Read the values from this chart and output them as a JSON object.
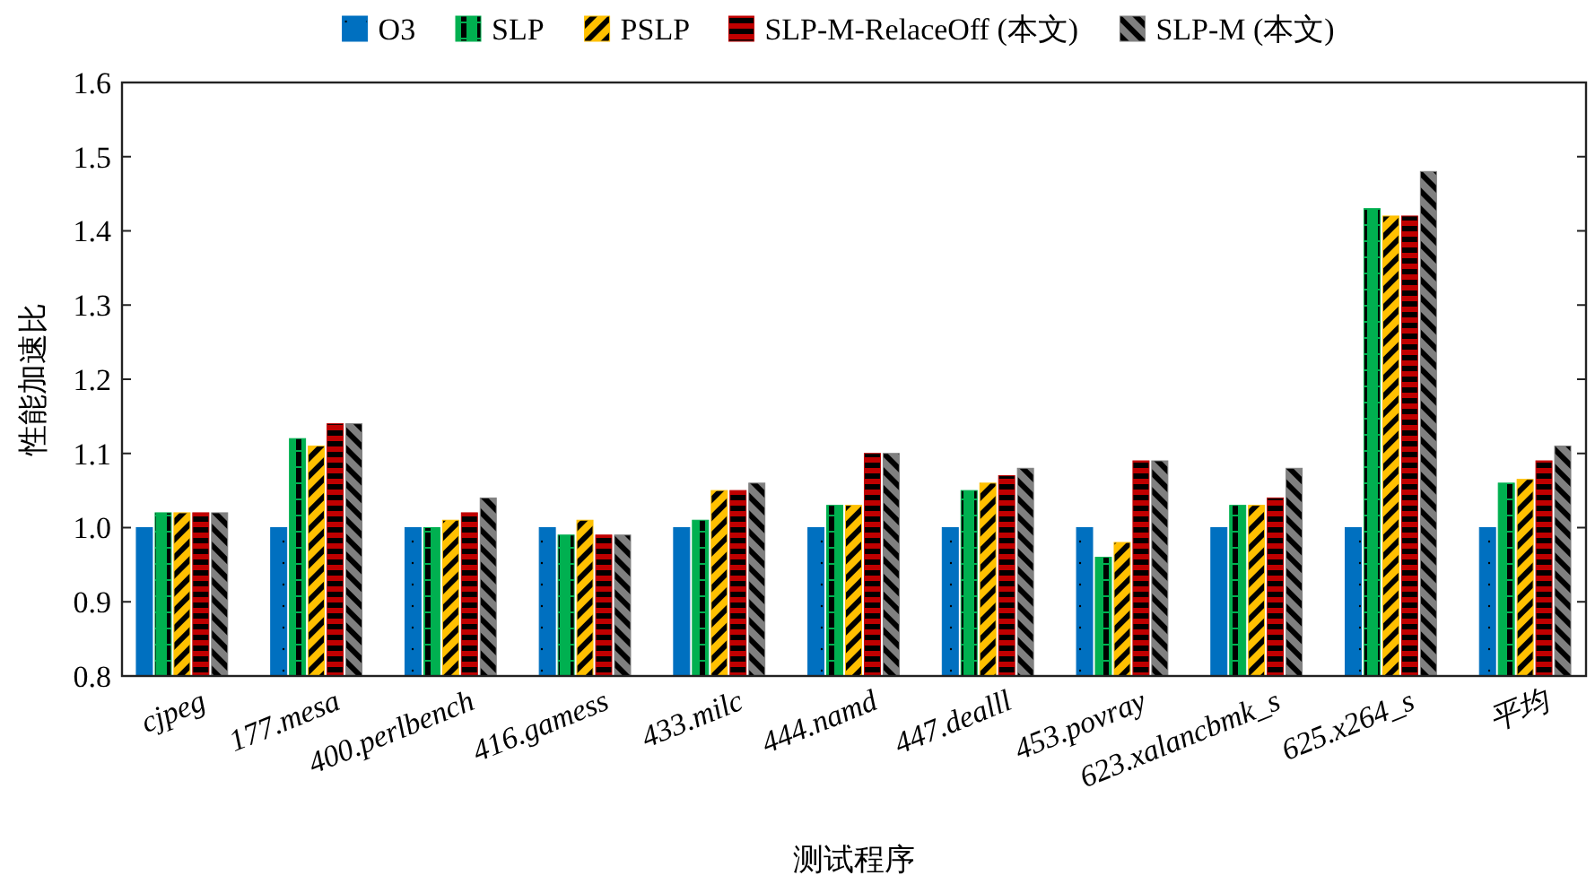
{
  "chart_data": {
    "type": "bar",
    "xlabel": "测试程序",
    "ylabel": "性能加速比",
    "categories": [
      "cjpeg",
      "177.mesa",
      "400.perlbench",
      "416.gamess",
      "433.milc",
      "444.namd",
      "447.dealll",
      "453.povray",
      "623.xalancbmk_s",
      "625.x264_s",
      "平均"
    ],
    "series": [
      {
        "name": "O3",
        "color": "#0070c0",
        "values": [
          1.0,
          1.0,
          1.0,
          1.0,
          1.0,
          1.0,
          1.0,
          1.0,
          1.0,
          1.0,
          1.0
        ]
      },
      {
        "name": "SLP",
        "color": "#00b050",
        "values": [
          1.02,
          1.12,
          1.0,
          0.99,
          1.01,
          1.03,
          1.05,
          0.96,
          1.03,
          1.43,
          1.06
        ]
      },
      {
        "name": "PSLP",
        "color": "#ffc000",
        "values": [
          1.02,
          1.11,
          1.01,
          1.01,
          1.05,
          1.03,
          1.06,
          0.98,
          1.03,
          1.42,
          1.065
        ]
      },
      {
        "name": "SLP-M-RelaceOff (本文)",
        "color": "#c00000",
        "values": [
          1.02,
          1.14,
          1.02,
          0.99,
          1.05,
          1.1,
          1.07,
          1.09,
          1.04,
          1.42,
          1.09
        ]
      },
      {
        "name": "SLP-M (本文)",
        "color": "#808080",
        "values": [
          1.02,
          1.14,
          1.04,
          0.99,
          1.06,
          1.1,
          1.08,
          1.09,
          1.08,
          1.48,
          1.11
        ]
      }
    ],
    "ylim": [
      0.8,
      1.6
    ],
    "yticks": [
      0.8,
      0.9,
      {
        "value": 1,
        "label": "1.0"
      },
      1.1,
      1.2,
      1.3,
      1.4,
      1.5,
      1.6
    ],
    "grid": false,
    "legend": "top"
  }
}
